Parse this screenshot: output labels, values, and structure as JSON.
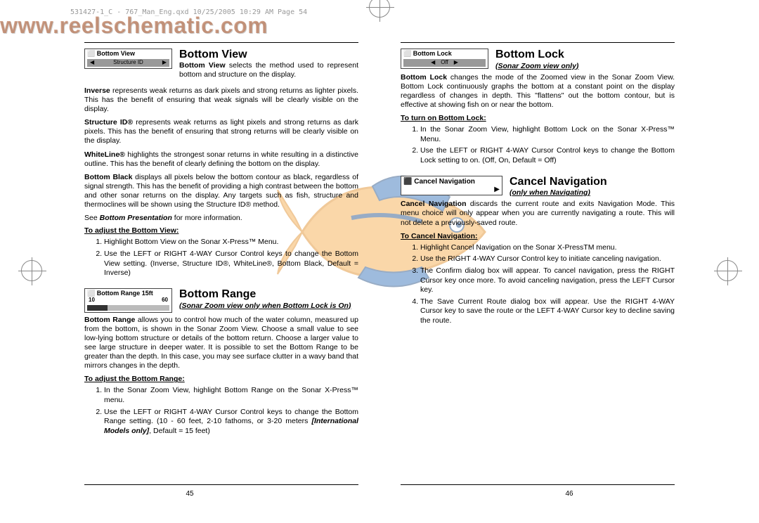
{
  "header_line": "531427-1_C - 767_Man_Eng.qxd  10/25/2005  10:29 AM  Page 54",
  "watermark": "www.reelschematic.com",
  "watermark_color": "#b46a3c",
  "fish_colors": {
    "body": "#f5a742",
    "stripe": "#2a6bb5",
    "outline": "#1d4a80"
  },
  "left": {
    "page_number": "45",
    "sections": [
      {
        "menu": {
          "row1": "⬜ Bottom View",
          "row2_left": "◀",
          "row2_text": "Structure ID",
          "row2_right": "▶"
        },
        "title": "Bottom View",
        "intro": "<b>Bottom View</b> selects the method used to represent bottom and structure on the display.",
        "paras": [
          "<b>Inverse</b> represents weak returns as dark pixels and strong returns as lighter pixels. This has the benefit of ensuring that weak signals will be clearly visible on the display.",
          "<b>Structure ID®</b> represents weak returns as light pixels and strong returns as dark pixels. This has the benefit of ensuring that strong returns will be clearly visible on the display.",
          "<b>WhiteLine®</b> highlights the strongest sonar returns in white resulting in a distinctive outline. This has the benefit of clearly defining the bottom on the display.",
          "<b>Bottom Black</b> displays all pixels below the bottom contour as black, regardless of signal strength. This has the benefit of providing a high contrast between the bottom and other sonar returns on the display. Any targets such as fish, structure and thermoclines will be shown using the Structure ID® method."
        ],
        "see": "See <b><i>Bottom Presentation</i></b> for more information.",
        "adjust_head": "To adjust the Bottom View:",
        "steps": [
          "Highlight Bottom View on the Sonar X-Press™ Menu.",
          "Use the LEFT or RIGHT 4-WAY Cursor Control keys to change the Bottom View setting. (Inverse, Structure ID®, WhiteLine®, Bottom Black, Default = Inverse)"
        ]
      },
      {
        "menu": {
          "row1": "⬜ Bottom Range   15ft",
          "range_low": "10",
          "range_high": "60"
        },
        "title": "Bottom Range",
        "subtitle": "(Sonar Zoom view only when Bottom Lock is On)",
        "paras": [
          "<b>Bottom Range</b> allows you to control how much of the water column, measured up from the bottom, is shown in the Sonar Zoom View. Choose a small value to see low-lying bottom structure or details of the bottom return. Choose a larger value to see large structure in deeper water. It is possible to set the Bottom Range to be greater than the depth. In this case, you may see surface clutter in a wavy band that mirrors changes in the depth."
        ],
        "adjust_head": "To adjust the Bottom Range:",
        "steps": [
          "In the Sonar Zoom View, highlight Bottom Range on the Sonar X-Press™ menu.",
          "Use the LEFT or RIGHT 4-WAY Cursor Control keys to change the Bottom Range setting. (10 - 60 feet, 2-10 fathoms, or 3-20 meters <b><i>[International Models only]</i></b>, Default = 15 feet)"
        ]
      }
    ]
  },
  "right": {
    "page_number": "46",
    "sections": [
      {
        "menu": {
          "row1": "⬜ Bottom Lock",
          "center_l": "◀",
          "center_text": "Off",
          "center_r": "▶"
        },
        "title": "Bottom Lock",
        "subtitle": "(Sonar Zoom view only)",
        "paras": [
          "<b>Bottom Lock</b> changes the mode of the Zoomed view in the Sonar Zoom View. Bottom Lock continuously graphs the bottom at a constant point on the display regardless of changes in depth. This \"flattens\" out the bottom contour, but is effective at showing fish on or near the bottom."
        ],
        "adjust_head": "To turn on Bottom Lock:",
        "steps": [
          "In the Sonar Zoom View, highlight Bottom Lock on the Sonar X-Press™ Menu.",
          "Use the LEFT or RIGHT 4-WAY Cursor Control keys to change the Bottom Lock setting to on. (Off, On, Default = Off)"
        ]
      },
      {
        "menu_cancel": {
          "r1": "⬛ Cancel Navigation",
          "r2": "▶"
        },
        "title": "Cancel Navigation",
        "subtitle": "(only when Navigating)",
        "paras": [
          "<b>Cancel Navigation</b> discards the current route and exits Navigation Mode. This menu choice will only appear when you are currently navigating a route. This will not delete a previously-saved route."
        ],
        "adjust_head": "To Cancel Navigation:",
        "steps": [
          "Highlight Cancel Navigation on the Sonar X-PressTM menu.",
          "Use the RIGHT 4-WAY Cursor Control key to initiate canceling navigation.",
          "The Confirm dialog box will appear. To cancel navigation, press the RIGHT Cursor key once more. To avoid canceling navigation, press the LEFT Cursor key.",
          "The Save Current Route dialog box will appear. Use the RIGHT 4-WAY Cursor key to save the route or the LEFT 4-WAY Cursor key to decline saving the route."
        ]
      }
    ]
  }
}
